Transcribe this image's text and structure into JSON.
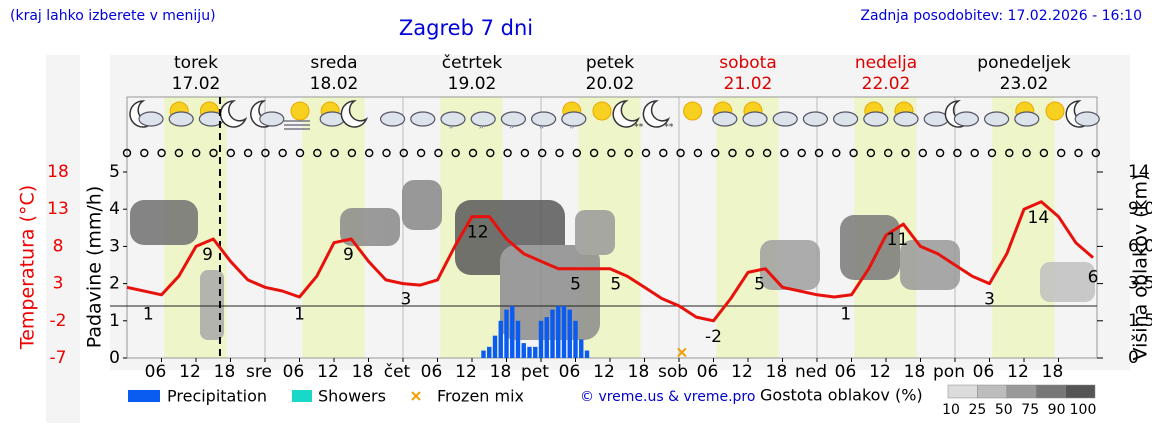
{
  "header": {
    "note": "(kraj lahko izberete v meniju)",
    "title": "Zagreb 7 dni",
    "updated": "Zadnja posodobitev: 17.02.2026 - 16:10"
  },
  "days": [
    {
      "name": "torek",
      "date": "17.02",
      "color": "#000000"
    },
    {
      "name": "sreda",
      "date": "18.02",
      "color": "#000000"
    },
    {
      "name": "četrtek",
      "date": "19.02",
      "color": "#000000"
    },
    {
      "name": "petek",
      "date": "20.02",
      "color": "#000000"
    },
    {
      "name": "sobota",
      "date": "21.02",
      "color": "#dd0000"
    },
    {
      "name": "nedelja",
      "date": "22.02",
      "color": "#dd0000"
    },
    {
      "name": "ponedeljek",
      "date": "23.02",
      "color": "#000000"
    }
  ],
  "chart_data": {
    "type": "meteogram",
    "xlim": [
      0,
      168
    ],
    "xticks": [
      {
        "value": 6,
        "label": "06"
      },
      {
        "value": 12,
        "label": "12"
      },
      {
        "value": 18,
        "label": "18"
      },
      {
        "value": 24,
        "label": "sre"
      },
      {
        "value": 30,
        "label": "06"
      },
      {
        "value": 36,
        "label": "12"
      },
      {
        "value": 42,
        "label": "18"
      },
      {
        "value": 48,
        "label": "čet"
      },
      {
        "value": 54,
        "label": "06"
      },
      {
        "value": 60,
        "label": "12"
      },
      {
        "value": 66,
        "label": "18"
      },
      {
        "value": 72,
        "label": "pet"
      },
      {
        "value": 78,
        "label": "06"
      },
      {
        "value": 84,
        "label": "12"
      },
      {
        "value": 90,
        "label": "18"
      },
      {
        "value": 96,
        "label": "sob"
      },
      {
        "value": 102,
        "label": "06"
      },
      {
        "value": 108,
        "label": "12"
      },
      {
        "value": 114,
        "label": "18"
      },
      {
        "value": 120,
        "label": "ned"
      },
      {
        "value": 126,
        "label": "06"
      },
      {
        "value": 132,
        "label": "12"
      },
      {
        "value": 138,
        "label": "18"
      },
      {
        "value": 144,
        "label": "pon"
      },
      {
        "value": 150,
        "label": "06"
      },
      {
        "value": 156,
        "label": "12"
      },
      {
        "value": 162,
        "label": "18"
      }
    ],
    "ylabel": "Padavine (mm/h)",
    "ylim": [
      0,
      5
    ],
    "yticks": [
      0,
      1,
      2,
      3,
      4,
      5
    ],
    "y2label": "Višina oblakov (km)",
    "y2lim": [
      0,
      14
    ],
    "y2ticks": [
      0,
      1.5,
      3.5,
      {
        "value": 6,
        "label": "6.0"
      },
      {
        "value": 9,
        "label": "9.0"
      },
      14
    ],
    "temp_axis": {
      "label": "Temperatura (°C)",
      "lim": [
        -7,
        18
      ],
      "ticks": [
        18,
        13,
        8,
        3,
        -2,
        -7
      ],
      "color": "#ee0000"
    },
    "current_time": 16.17,
    "temperature": {
      "color": "#e8120c",
      "x": [
        0,
        6,
        9,
        12,
        15,
        18,
        21,
        24,
        27,
        30,
        33,
        36,
        39,
        42,
        45,
        48,
        51,
        54,
        57,
        60,
        63,
        66,
        69,
        72,
        75,
        78,
        81,
        84,
        87,
        90,
        93,
        96,
        99,
        102,
        105,
        108,
        111,
        114,
        117,
        120,
        123,
        126,
        129,
        132,
        135,
        138,
        141,
        144,
        147,
        150,
        153,
        156,
        159,
        162,
        165,
        168
      ],
      "values": [
        2.5,
        1.5,
        4,
        8,
        9,
        6,
        3.5,
        2.5,
        2,
        1.2,
        4,
        8.5,
        9,
        6,
        3.5,
        3,
        2.8,
        3.5,
        8,
        12,
        12,
        9,
        7,
        6,
        5,
        5,
        5,
        5,
        4,
        2.5,
        1,
        0,
        -1.5,
        -2,
        1,
        4.5,
        5,
        2.5,
        2,
        1.5,
        1.2,
        1.5,
        5,
        9.5,
        11,
        8,
        7,
        5.5,
        4,
        3,
        7,
        13,
        14,
        12,
        8.5,
        6.5
      ]
    },
    "temperature_labels": {
      "x": [
        3.7,
        14,
        30,
        38.5,
        48.5,
        61,
        78,
        85,
        102,
        110,
        125,
        134,
        150,
        158.5,
        168
      ],
      "values": [
        1,
        9,
        1,
        9,
        3,
        12,
        5,
        5,
        -2,
        5,
        1,
        11,
        3,
        14,
        6
      ]
    },
    "series": [
      {
        "name": "Precipitation",
        "color": "#0a5cf0",
        "x": [
          62,
          63,
          64,
          65,
          66,
          67,
          68,
          69,
          70,
          71,
          72,
          73,
          74,
          75,
          76,
          77,
          78,
          79,
          80
        ],
        "values": [
          0.2,
          0.3,
          0.6,
          1.0,
          1.3,
          1.4,
          1.0,
          0.4,
          0.3,
          0.3,
          1.0,
          1.1,
          1.3,
          1.4,
          1.4,
          1.3,
          1.0,
          0.5,
          0.2
        ]
      },
      {
        "name": "Showers",
        "color": "#19d8c8",
        "x": [],
        "values": []
      },
      {
        "name": "Frozen mix",
        "color": "#f0a000",
        "x": [
          96.5
        ],
        "values": [
          0.15
        ]
      }
    ],
    "credit": "© vreme.us & vreme.pro",
    "cloud_legend": {
      "title": "Gostota oblakov (%)",
      "levels": [
        10,
        25,
        50,
        75,
        90,
        100
      ]
    }
  }
}
